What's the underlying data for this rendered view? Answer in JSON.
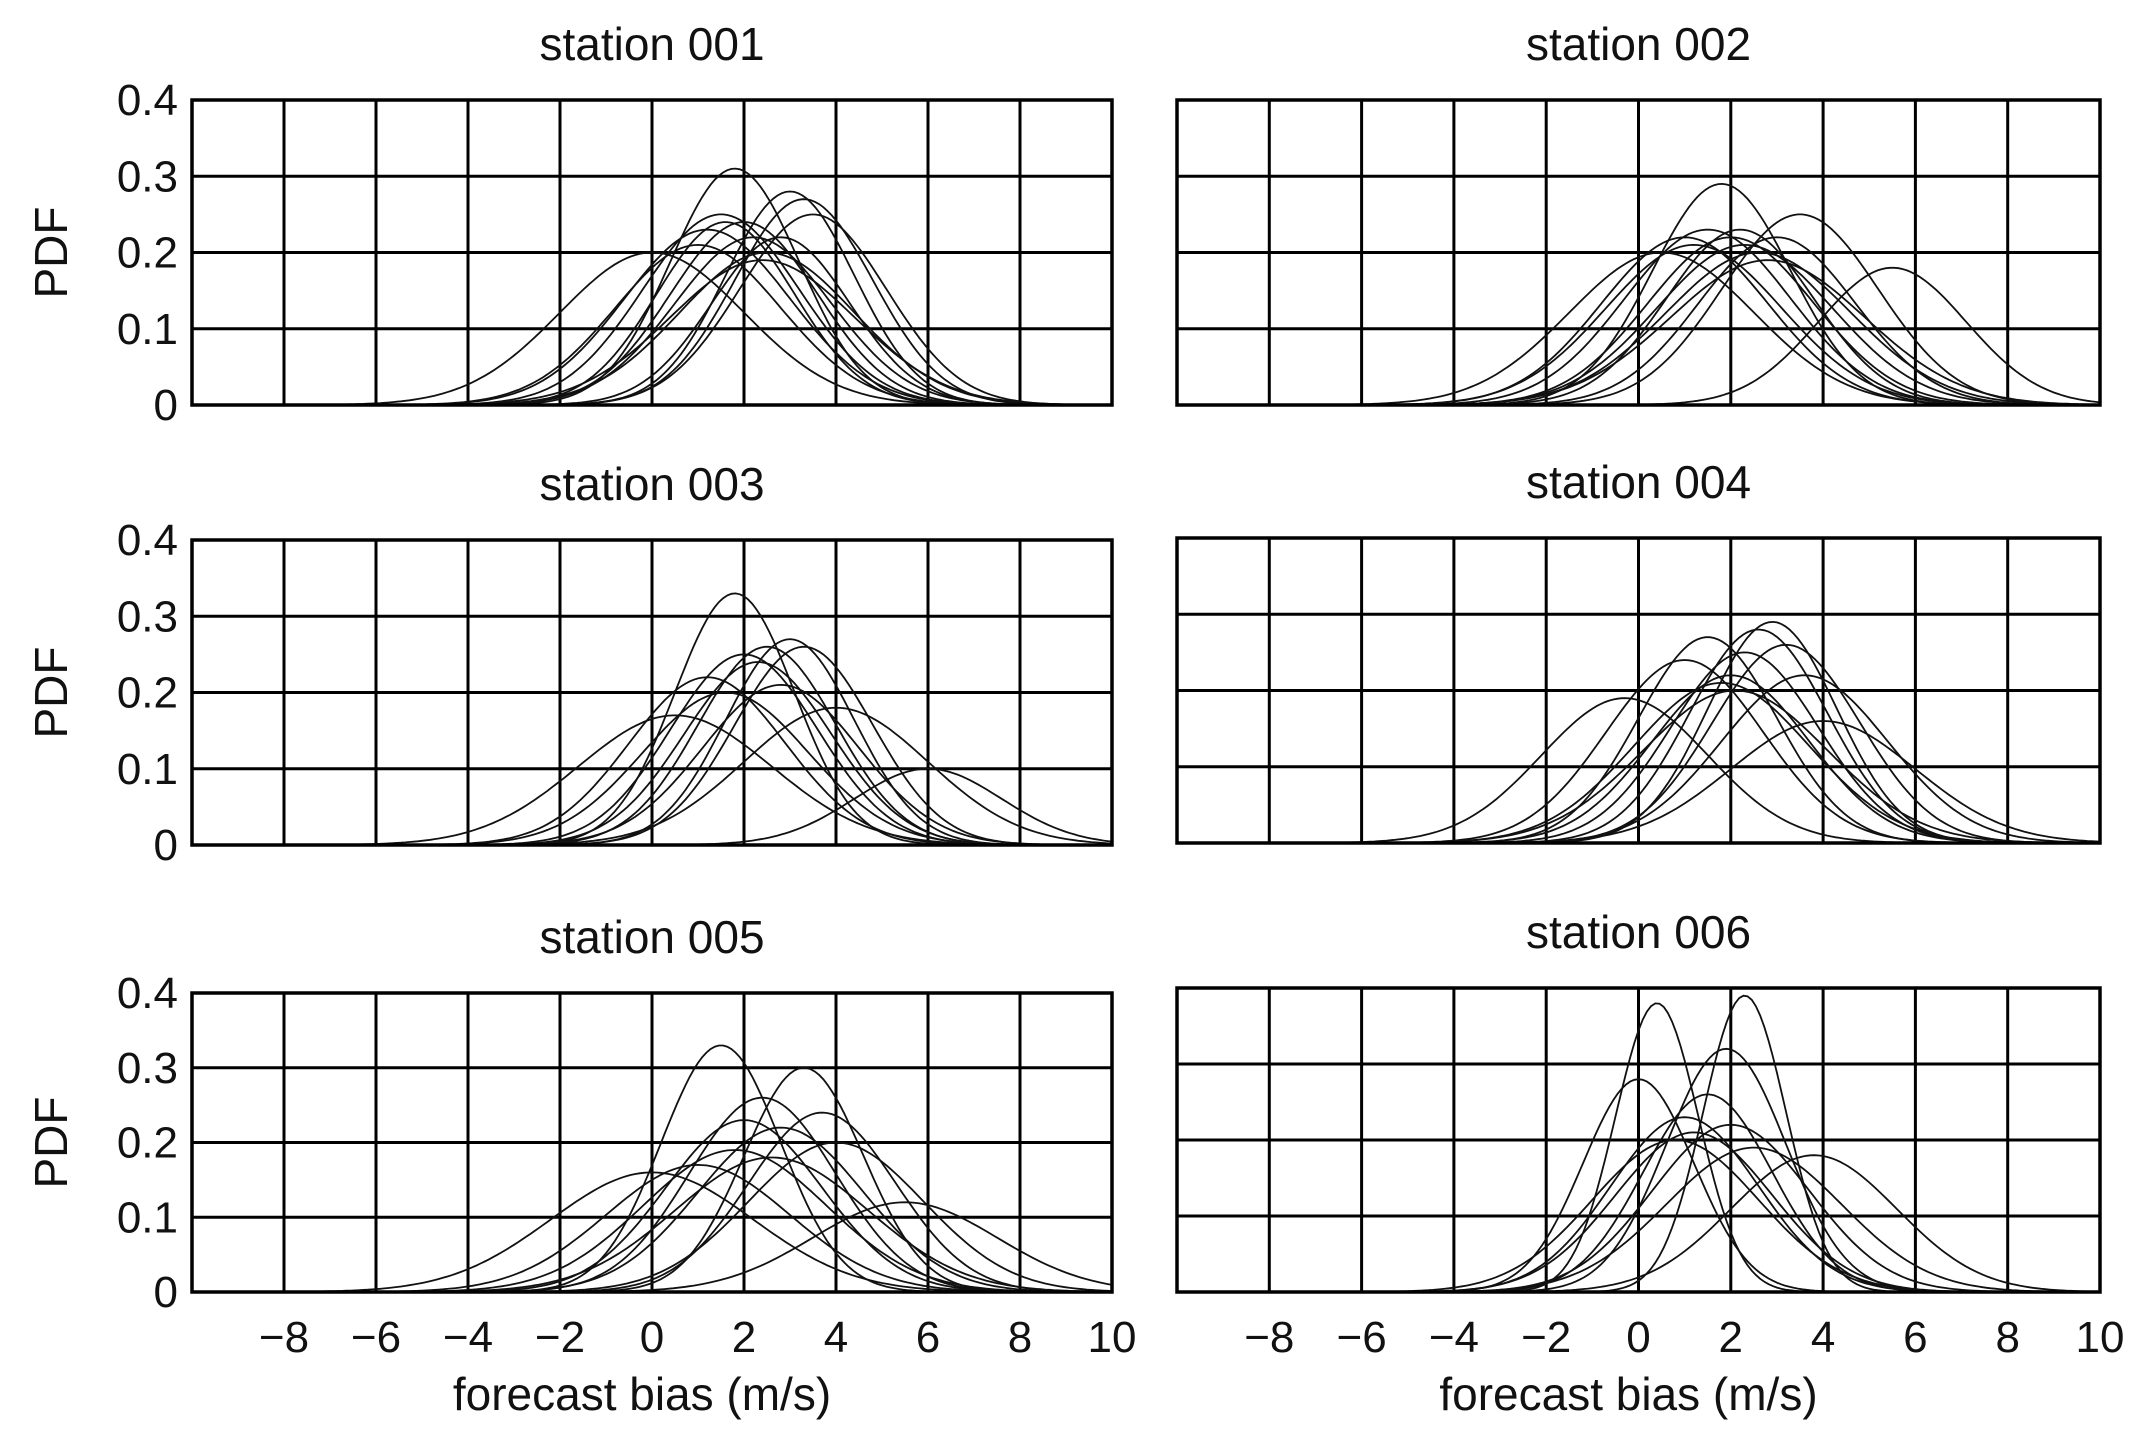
{
  "chart_data": [
    {
      "type": "line",
      "title": "station 001",
      "ylabel": "PDF",
      "xlabel": "",
      "xlim": [
        -10,
        10
      ],
      "ylim": [
        0,
        0.4
      ],
      "x_ticks": [],
      "x_tick_labels": [],
      "y_ticks": [
        0,
        0.1,
        0.2,
        0.3,
        0.4
      ],
      "y_tick_labels": [
        "0",
        "0.1",
        "0.2",
        "0.3",
        "0.4"
      ],
      "grid": true,
      "series": [
        {
          "peak_x": 1.2,
          "peak_pdf": 0.23,
          "spread": 1.8
        },
        {
          "peak_x": 1.5,
          "peak_pdf": 0.25,
          "spread": 1.7
        },
        {
          "peak_x": 1.8,
          "peak_pdf": 0.31,
          "spread": 1.4
        },
        {
          "peak_x": 2.0,
          "peak_pdf": 0.24,
          "spread": 1.6
        },
        {
          "peak_x": 2.2,
          "peak_pdf": 0.22,
          "spread": 1.7
        },
        {
          "peak_x": 2.5,
          "peak_pdf": 0.2,
          "spread": 1.9
        },
        {
          "peak_x": 3.0,
          "peak_pdf": 0.28,
          "spread": 1.4
        },
        {
          "peak_x": 3.3,
          "peak_pdf": 0.27,
          "spread": 1.5
        },
        {
          "peak_x": 3.5,
          "peak_pdf": 0.25,
          "spread": 1.6
        },
        {
          "peak_x": 0.0,
          "peak_pdf": 0.2,
          "spread": 2.0
        },
        {
          "peak_x": 1.0,
          "peak_pdf": 0.21,
          "spread": 1.8
        },
        {
          "peak_x": 2.8,
          "peak_pdf": 0.22,
          "spread": 1.5
        },
        {
          "peak_x": 1.6,
          "peak_pdf": 0.24,
          "spread": 1.5
        },
        {
          "peak_x": 2.4,
          "peak_pdf": 0.19,
          "spread": 2.0
        }
      ]
    },
    {
      "type": "line",
      "title": "station 002",
      "ylabel": "",
      "xlabel": "",
      "xlim": [
        -10,
        10
      ],
      "ylim": [
        0,
        0.4
      ],
      "x_ticks": [],
      "x_tick_labels": [],
      "y_ticks": [
        0,
        0.1,
        0.2,
        0.3,
        0.4
      ],
      "y_tick_labels": [],
      "grid": true,
      "series": [
        {
          "peak_x": 1.0,
          "peak_pdf": 0.22,
          "spread": 1.8
        },
        {
          "peak_x": 1.5,
          "peak_pdf": 0.23,
          "spread": 1.8
        },
        {
          "peak_x": 1.8,
          "peak_pdf": 0.29,
          "spread": 1.5
        },
        {
          "peak_x": 2.0,
          "peak_pdf": 0.22,
          "spread": 1.8
        },
        {
          "peak_x": 2.3,
          "peak_pdf": 0.21,
          "spread": 1.9
        },
        {
          "peak_x": 2.6,
          "peak_pdf": 0.2,
          "spread": 2.0
        },
        {
          "peak_x": 3.0,
          "peak_pdf": 0.22,
          "spread": 1.7
        },
        {
          "peak_x": 3.5,
          "peak_pdf": 0.25,
          "spread": 1.7
        },
        {
          "peak_x": 5.5,
          "peak_pdf": 0.18,
          "spread": 1.6
        },
        {
          "peak_x": 0.5,
          "peak_pdf": 0.2,
          "spread": 2.0
        },
        {
          "peak_x": 2.2,
          "peak_pdf": 0.23,
          "spread": 1.6
        },
        {
          "peak_x": 1.2,
          "peak_pdf": 0.21,
          "spread": 1.9
        },
        {
          "peak_x": 2.8,
          "peak_pdf": 0.19,
          "spread": 2.1
        }
      ]
    },
    {
      "type": "line",
      "title": "station 003",
      "ylabel": "PDF",
      "xlabel": "",
      "xlim": [
        -10,
        10
      ],
      "ylim": [
        0,
        0.4
      ],
      "x_ticks": [],
      "x_tick_labels": [],
      "y_ticks": [
        0,
        0.1,
        0.2,
        0.3,
        0.4
      ],
      "y_tick_labels": [
        "0",
        "0.1",
        "0.2",
        "0.3",
        "0.4"
      ],
      "grid": true,
      "series": [
        {
          "peak_x": 0.5,
          "peak_pdf": 0.17,
          "spread": 2.1
        },
        {
          "peak_x": 1.2,
          "peak_pdf": 0.22,
          "spread": 1.7
        },
        {
          "peak_x": 1.8,
          "peak_pdf": 0.33,
          "spread": 1.3
        },
        {
          "peak_x": 2.0,
          "peak_pdf": 0.25,
          "spread": 1.6
        },
        {
          "peak_x": 2.3,
          "peak_pdf": 0.24,
          "spread": 1.6
        },
        {
          "peak_x": 2.5,
          "peak_pdf": 0.26,
          "spread": 1.5
        },
        {
          "peak_x": 3.0,
          "peak_pdf": 0.27,
          "spread": 1.4
        },
        {
          "peak_x": 3.3,
          "peak_pdf": 0.26,
          "spread": 1.5
        },
        {
          "peak_x": 4.0,
          "peak_pdf": 0.18,
          "spread": 2.0
        },
        {
          "peak_x": 6.0,
          "peak_pdf": 0.1,
          "spread": 1.6
        },
        {
          "peak_x": 1.6,
          "peak_pdf": 0.2,
          "spread": 1.8
        },
        {
          "peak_x": 2.8,
          "peak_pdf": 0.21,
          "spread": 1.7
        }
      ]
    },
    {
      "type": "line",
      "title": "station 004",
      "ylabel": "",
      "xlabel": "",
      "xlim": [
        -10,
        10
      ],
      "ylim": [
        0,
        0.4
      ],
      "x_ticks": [],
      "x_tick_labels": [],
      "y_ticks": [
        0,
        0.1,
        0.2,
        0.3,
        0.4
      ],
      "y_tick_labels": [],
      "grid": true,
      "series": [
        {
          "peak_x": -0.3,
          "peak_pdf": 0.19,
          "spread": 1.8
        },
        {
          "peak_x": 1.0,
          "peak_pdf": 0.24,
          "spread": 1.7
        },
        {
          "peak_x": 1.5,
          "peak_pdf": 0.27,
          "spread": 1.5
        },
        {
          "peak_x": 2.0,
          "peak_pdf": 0.22,
          "spread": 1.7
        },
        {
          "peak_x": 2.3,
          "peak_pdf": 0.25,
          "spread": 1.6
        },
        {
          "peak_x": 2.6,
          "peak_pdf": 0.28,
          "spread": 1.5
        },
        {
          "peak_x": 2.9,
          "peak_pdf": 0.29,
          "spread": 1.4
        },
        {
          "peak_x": 3.2,
          "peak_pdf": 0.26,
          "spread": 1.6
        },
        {
          "peak_x": 3.6,
          "peak_pdf": 0.22,
          "spread": 1.8
        },
        {
          "peak_x": 1.8,
          "peak_pdf": 0.21,
          "spread": 1.9
        },
        {
          "peak_x": 2.1,
          "peak_pdf": 0.2,
          "spread": 2.0
        },
        {
          "peak_x": 4.0,
          "peak_pdf": 0.16,
          "spread": 2.0
        }
      ]
    },
    {
      "type": "line",
      "title": "station 005",
      "ylabel": "PDF",
      "xlabel": "forecast bias (m/s)",
      "xlim": [
        -10,
        10
      ],
      "ylim": [
        0,
        0.4
      ],
      "x_ticks": [
        -8,
        -6,
        -4,
        -2,
        0,
        2,
        4,
        6,
        8,
        10
      ],
      "x_tick_labels": [
        "−8",
        "−6",
        "−4",
        "−2",
        "0",
        "2",
        "4",
        "6",
        "8",
        "10"
      ],
      "y_ticks": [
        0,
        0.1,
        0.2,
        0.3,
        0.4
      ],
      "y_tick_labels": [
        "0",
        "0.1",
        "0.2",
        "0.3",
        "0.4"
      ],
      "grid": true,
      "series": [
        {
          "peak_x": 0.0,
          "peak_pdf": 0.16,
          "spread": 2.2
        },
        {
          "peak_x": 1.0,
          "peak_pdf": 0.17,
          "spread": 2.0
        },
        {
          "peak_x": 1.5,
          "peak_pdf": 0.33,
          "spread": 1.3
        },
        {
          "peak_x": 2.0,
          "peak_pdf": 0.23,
          "spread": 1.7
        },
        {
          "peak_x": 2.4,
          "peak_pdf": 0.26,
          "spread": 1.6
        },
        {
          "peak_x": 2.8,
          "peak_pdf": 0.22,
          "spread": 1.8
        },
        {
          "peak_x": 3.3,
          "peak_pdf": 0.3,
          "spread": 1.3
        },
        {
          "peak_x": 3.7,
          "peak_pdf": 0.24,
          "spread": 1.6
        },
        {
          "peak_x": 4.0,
          "peak_pdf": 0.2,
          "spread": 1.9
        },
        {
          "peak_x": 5.5,
          "peak_pdf": 0.12,
          "spread": 2.0
        },
        {
          "peak_x": 1.8,
          "peak_pdf": 0.19,
          "spread": 2.0
        },
        {
          "peak_x": 2.6,
          "peak_pdf": 0.18,
          "spread": 2.1
        }
      ]
    },
    {
      "type": "line",
      "title": "station 006",
      "ylabel": "",
      "xlabel": "forecast bias (m/s)",
      "xlim": [
        -10,
        10
      ],
      "ylim": [
        0,
        0.4
      ],
      "x_ticks": [
        -8,
        -6,
        -4,
        -2,
        0,
        2,
        4,
        6,
        8,
        10
      ],
      "x_tick_labels": [
        "−8",
        "−6",
        "−4",
        "−2",
        "0",
        "2",
        "4",
        "6",
        "8",
        "10"
      ],
      "y_ticks": [
        0,
        0.1,
        0.2,
        0.3,
        0.4
      ],
      "y_tick_labels": [],
      "grid": true,
      "series": [
        {
          "peak_x": 0.4,
          "peak_pdf": 0.38,
          "spread": 0.9
        },
        {
          "peak_x": 2.3,
          "peak_pdf": 0.39,
          "spread": 0.9
        },
        {
          "peak_x": 0.0,
          "peak_pdf": 0.28,
          "spread": 1.2
        },
        {
          "peak_x": 1.0,
          "peak_pdf": 0.23,
          "spread": 1.6
        },
        {
          "peak_x": 1.5,
          "peak_pdf": 0.26,
          "spread": 1.4
        },
        {
          "peak_x": 1.9,
          "peak_pdf": 0.32,
          "spread": 1.3
        },
        {
          "peak_x": 2.0,
          "peak_pdf": 0.22,
          "spread": 1.7
        },
        {
          "peak_x": 1.2,
          "peak_pdf": 0.21,
          "spread": 1.7
        },
        {
          "peak_x": 2.5,
          "peak_pdf": 0.19,
          "spread": 1.9
        },
        {
          "peak_x": 3.8,
          "peak_pdf": 0.18,
          "spread": 1.8
        },
        {
          "peak_x": 0.8,
          "peak_pdf": 0.2,
          "spread": 1.8
        }
      ]
    }
  ]
}
